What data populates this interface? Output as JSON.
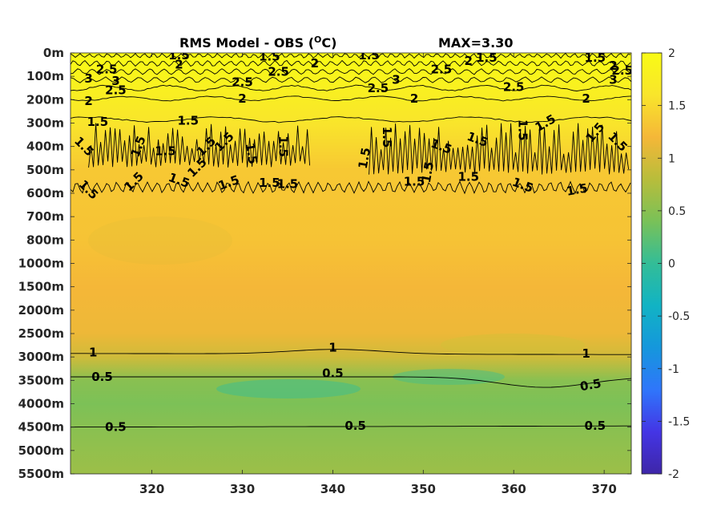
{
  "chart_data": {
    "type": "heatmap",
    "title_left": "RMS Model - OBS (",
    "title_sup": "O",
    "title_unit": "C)",
    "title_max": "MAX=3.30",
    "x_ticks": [
      "320",
      "330",
      "340",
      "350",
      "360",
      "370"
    ],
    "x_tick_values": [
      320,
      330,
      340,
      350,
      360,
      370
    ],
    "xlim": [
      311,
      373
    ],
    "y_ticks": [
      "0m",
      "100m",
      "200m",
      "300m",
      "400m",
      "500m",
      "600m",
      "700m",
      "800m",
      "1000m",
      "1500m",
      "2000m",
      "2500m",
      "3000m",
      "3500m",
      "4000m",
      "4500m",
      "5000m",
      "5500m"
    ],
    "colorbar": {
      "min": -2,
      "max": 2,
      "ticks": [
        "2",
        "1.5",
        "1",
        "0.5",
        "0",
        "-0.5",
        "-1",
        "-1.5",
        "-2"
      ],
      "tick_values": [
        2,
        1.5,
        1,
        0.5,
        0,
        -0.5,
        -1,
        -1.5,
        -2
      ],
      "colormap": [
        "#3e26a8",
        "#4435e5",
        "#2f76fb",
        "#1597dc",
        "#11b3c4",
        "#33bd97",
        "#79c158",
        "#b8bd3b",
        "#f5b738",
        "#f9e52b",
        "#f9fb15"
      ]
    },
    "depth_profile": [
      {
        "level": 0,
        "value": 2.2
      },
      {
        "level": 3,
        "value": 1.6
      },
      {
        "level": 5,
        "value": 1.35
      },
      {
        "level": 8,
        "value": 1.3
      },
      {
        "level": 10,
        "value": 1.2
      },
      {
        "level": 12,
        "value": 1.15
      },
      {
        "level": 13,
        "value": 0.95
      },
      {
        "level": 14,
        "value": 0.5
      },
      {
        "level": 15,
        "value": 0.42
      },
      {
        "level": 16,
        "value": 0.5
      },
      {
        "level": 18,
        "value": 0.62
      }
    ],
    "contour_labels": [
      {
        "text": "1.5",
        "x": 323,
        "level": 0.1,
        "rot": 0
      },
      {
        "text": "1.5",
        "x": 333,
        "level": 0.15,
        "rot": 0
      },
      {
        "text": "1.5",
        "x": 344,
        "level": 0.1,
        "rot": 0
      },
      {
        "text": "1.5",
        "x": 357,
        "level": 0.2,
        "rot": 0
      },
      {
        "text": "1.5",
        "x": 369,
        "level": 0.2,
        "rot": 0
      },
      {
        "text": "2",
        "x": 323,
        "level": 0.5,
        "rot": 0
      },
      {
        "text": "2",
        "x": 338,
        "level": 0.45,
        "rot": 0
      },
      {
        "text": "2",
        "x": 355,
        "level": 0.35,
        "rot": 0
      },
      {
        "text": "2",
        "x": 371,
        "level": 0.55,
        "rot": 0
      },
      {
        "text": "2.5",
        "x": 315,
        "level": 0.7,
        "rot": 0
      },
      {
        "text": "2.5",
        "x": 334,
        "level": 0.8,
        "rot": 0
      },
      {
        "text": "2.5",
        "x": 352,
        "level": 0.7,
        "rot": 0
      },
      {
        "text": "2.5",
        "x": 372,
        "level": 0.75,
        "rot": 0
      },
      {
        "text": "3",
        "x": 313,
        "level": 1.1,
        "rot": 0
      },
      {
        "text": "3",
        "x": 316,
        "level": 1.2,
        "rot": 0
      },
      {
        "text": "3",
        "x": 347,
        "level": 1.15,
        "rot": 0
      },
      {
        "text": "3",
        "x": 371,
        "level": 1.15,
        "rot": 0
      },
      {
        "text": "2.5",
        "x": 316,
        "level": 1.6,
        "rot": 0
      },
      {
        "text": "2.5",
        "x": 330,
        "level": 1.25,
        "rot": 0
      },
      {
        "text": "2.5",
        "x": 345,
        "level": 1.5,
        "rot": 0
      },
      {
        "text": "2.5",
        "x": 360,
        "level": 1.45,
        "rot": 0
      },
      {
        "text": "2",
        "x": 313,
        "level": 2.05,
        "rot": 0
      },
      {
        "text": "2",
        "x": 330,
        "level": 1.95,
        "rot": 0
      },
      {
        "text": "2",
        "x": 349,
        "level": 1.95,
        "rot": 0
      },
      {
        "text": "2",
        "x": 368,
        "level": 1.95,
        "rot": 0
      },
      {
        "text": "1.5",
        "x": 314,
        "level": 2.95,
        "rot": 0
      },
      {
        "text": "1.5",
        "x": 324,
        "level": 2.9,
        "rot": 0
      },
      {
        "text": "1.5",
        "x": 312.5,
        "level": 4.0,
        "rot": 45
      },
      {
        "text": "1.5",
        "x": 318.5,
        "level": 4.0,
        "rot": -70
      },
      {
        "text": "1.5",
        "x": 321.5,
        "level": 4.2,
        "rot": 0
      },
      {
        "text": "1.5",
        "x": 326,
        "level": 4.0,
        "rot": -45
      },
      {
        "text": "1.5",
        "x": 328,
        "level": 3.8,
        "rot": -45
      },
      {
        "text": "1.5",
        "x": 331,
        "level": 4.3,
        "rot": 80
      },
      {
        "text": "1.5",
        "x": 334.5,
        "level": 4.0,
        "rot": 90
      },
      {
        "text": "1.5",
        "x": 343.5,
        "level": 4.5,
        "rot": -80
      },
      {
        "text": "1.5",
        "x": 346,
        "level": 3.6,
        "rot": 90
      },
      {
        "text": "1.5",
        "x": 352,
        "level": 4.0,
        "rot": 20
      },
      {
        "text": "1.5",
        "x": 356,
        "level": 3.7,
        "rot": 20
      },
      {
        "text": "1.5",
        "x": 361,
        "level": 3.3,
        "rot": 90
      },
      {
        "text": "1.5",
        "x": 363.5,
        "level": 3.0,
        "rot": -30
      },
      {
        "text": "1.5",
        "x": 369,
        "level": 3.4,
        "rot": -50
      },
      {
        "text": "1.5",
        "x": 371.5,
        "level": 3.8,
        "rot": 45
      },
      {
        "text": "1.5",
        "x": 313,
        "level": 5.85,
        "rot": 45
      },
      {
        "text": "1.5",
        "x": 318,
        "level": 5.5,
        "rot": -45
      },
      {
        "text": "1.5",
        "x": 323,
        "level": 5.45,
        "rot": 20
      },
      {
        "text": "1.5",
        "x": 325,
        "level": 4.9,
        "rot": -45
      },
      {
        "text": "1.5",
        "x": 328.5,
        "level": 5.55,
        "rot": -20
      },
      {
        "text": "1.5",
        "x": 333,
        "level": 5.55,
        "rot": 0
      },
      {
        "text": "1.5",
        "x": 335,
        "level": 5.6,
        "rot": 0
      },
      {
        "text": "1.5",
        "x": 349,
        "level": 5.5,
        "rot": 0
      },
      {
        "text": "1.5",
        "x": 350.5,
        "level": 5.1,
        "rot": -80
      },
      {
        "text": "1.5",
        "x": 355,
        "level": 5.3,
        "rot": 0
      },
      {
        "text": "1.5",
        "x": 361,
        "level": 5.65,
        "rot": 20
      },
      {
        "text": "1.5",
        "x": 367,
        "level": 5.85,
        "rot": -10
      },
      {
        "text": "1",
        "x": 313.5,
        "level": 12.8,
        "rot": 0
      },
      {
        "text": "1",
        "x": 340,
        "level": 12.6,
        "rot": 0
      },
      {
        "text": "1",
        "x": 368,
        "level": 12.85,
        "rot": 0
      },
      {
        "text": "0.5",
        "x": 314.5,
        "level": 13.85,
        "rot": 0
      },
      {
        "text": "0.5",
        "x": 340,
        "level": 13.7,
        "rot": 0
      },
      {
        "text": "0.5",
        "x": 368.5,
        "level": 14.2,
        "rot": -10
      },
      {
        "text": "0.5",
        "x": 316,
        "level": 16.0,
        "rot": 0
      },
      {
        "text": "0.5",
        "x": 342.5,
        "level": 15.95,
        "rot": 0
      },
      {
        "text": "0.5",
        "x": 369,
        "level": 15.95,
        "rot": 0
      }
    ]
  }
}
